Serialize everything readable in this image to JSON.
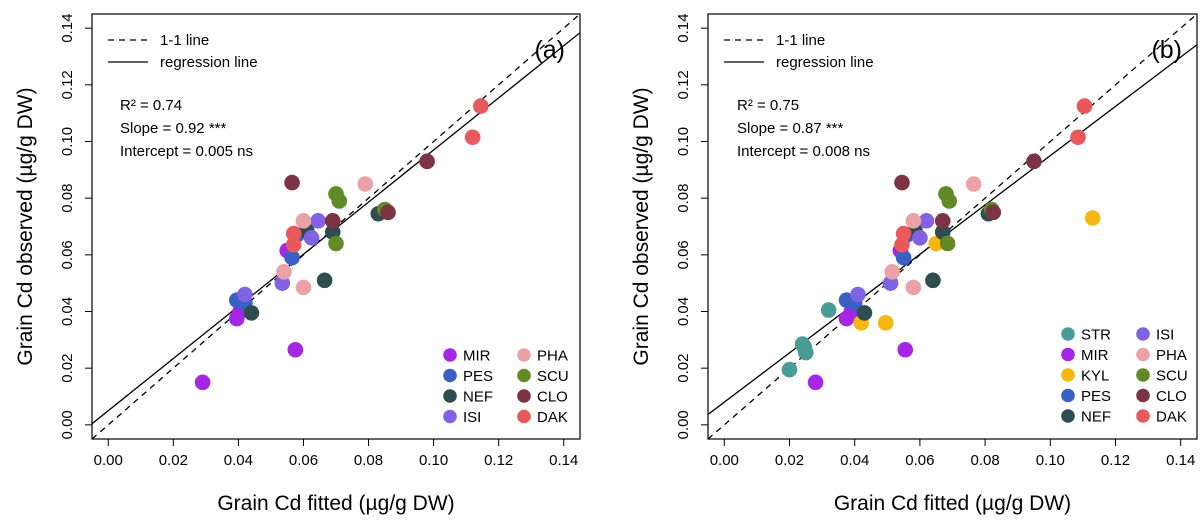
{
  "colors": {
    "STR": "#4a9c96",
    "MIR": "#a626e5",
    "KYL": "#f5b710",
    "PES": "#3a60c6",
    "NEF": "#2e4d4e",
    "ISI": "#8162e4",
    "PHA": "#eaa2a6",
    "SCU": "#5f8a25",
    "CLO": "#7c3344",
    "DAK": "#e9585a"
  },
  "chart_data": [
    {
      "type": "scatter",
      "panel_label": "(a)",
      "xlabel": "Grain Cd fitted (µg/g DW)",
      "ylabel": "Grain Cd observed (µg/g DW)",
      "xlim": [
        -0.005,
        0.145
      ],
      "ylim": [
        -0.005,
        0.145
      ],
      "xticks": [
        "0.00",
        "0.02",
        "0.04",
        "0.06",
        "0.08",
        "0.10",
        "0.12",
        "0.14"
      ],
      "yticks": [
        "0.00",
        "0.02",
        "0.04",
        "0.06",
        "0.08",
        "0.10",
        "0.12",
        "0.14"
      ],
      "line_legend": [
        "1-1 line",
        "regression line"
      ],
      "stats": [
        "R² = 0.74",
        "Slope = 0.92 ***",
        "Intercept = 0.005 ns"
      ],
      "regression": {
        "slope": 0.92,
        "intercept": 0.005
      },
      "legend": [
        "MIR",
        "PES",
        "NEF",
        "ISI",
        "PHA",
        "SCU",
        "CLO",
        "DAK"
      ],
      "legend_position": "bottom-right",
      "points": [
        {
          "g": "MIR",
          "x": 0.029,
          "y": 0.015
        },
        {
          "g": "MIR",
          "x": 0.0575,
          "y": 0.0265
        },
        {
          "g": "MIR",
          "x": 0.0395,
          "y": 0.0375
        },
        {
          "g": "MIR",
          "x": 0.0405,
          "y": 0.04
        },
        {
          "g": "MIR",
          "x": 0.055,
          "y": 0.0615
        },
        {
          "g": "PES",
          "x": 0.0395,
          "y": 0.044
        },
        {
          "g": "PES",
          "x": 0.042,
          "y": 0.043
        },
        {
          "g": "PES",
          "x": 0.0565,
          "y": 0.059
        },
        {
          "g": "PES",
          "x": 0.058,
          "y": 0.067
        },
        {
          "g": "NEF",
          "x": 0.044,
          "y": 0.0395
        },
        {
          "g": "NEF",
          "x": 0.0665,
          "y": 0.051
        },
        {
          "g": "NEF",
          "x": 0.061,
          "y": 0.0685
        },
        {
          "g": "NEF",
          "x": 0.069,
          "y": 0.068
        },
        {
          "g": "NEF",
          "x": 0.083,
          "y": 0.0745
        },
        {
          "g": "ISI",
          "x": 0.042,
          "y": 0.046
        },
        {
          "g": "ISI",
          "x": 0.0535,
          "y": 0.05
        },
        {
          "g": "ISI",
          "x": 0.0625,
          "y": 0.066
        },
        {
          "g": "ISI",
          "x": 0.0645,
          "y": 0.072
        },
        {
          "g": "PHA",
          "x": 0.054,
          "y": 0.054
        },
        {
          "g": "PHA",
          "x": 0.06,
          "y": 0.0485
        },
        {
          "g": "PHA",
          "x": 0.06,
          "y": 0.072
        },
        {
          "g": "PHA",
          "x": 0.079,
          "y": 0.085
        },
        {
          "g": "SCU",
          "x": 0.07,
          "y": 0.064
        },
        {
          "g": "SCU",
          "x": 0.07,
          "y": 0.0815
        },
        {
          "g": "SCU",
          "x": 0.071,
          "y": 0.079
        },
        {
          "g": "SCU",
          "x": 0.085,
          "y": 0.076
        },
        {
          "g": "CLO",
          "x": 0.0565,
          "y": 0.0855
        },
        {
          "g": "CLO",
          "x": 0.069,
          "y": 0.072
        },
        {
          "g": "CLO",
          "x": 0.086,
          "y": 0.075
        },
        {
          "g": "CLO",
          "x": 0.098,
          "y": 0.093
        },
        {
          "g": "DAK",
          "x": 0.057,
          "y": 0.0635
        },
        {
          "g": "DAK",
          "x": 0.057,
          "y": 0.0675
        },
        {
          "g": "DAK",
          "x": 0.112,
          "y": 0.1015
        },
        {
          "g": "DAK",
          "x": 0.1145,
          "y": 0.1125
        }
      ]
    },
    {
      "type": "scatter",
      "panel_label": "(b)",
      "xlabel": "Grain Cd fitted (µg/g DW)",
      "ylabel": "Grain Cd observed (µg/g DW)",
      "xlim": [
        -0.005,
        0.145
      ],
      "ylim": [
        -0.005,
        0.145
      ],
      "xticks": [
        "0.00",
        "0.02",
        "0.04",
        "0.06",
        "0.08",
        "0.10",
        "0.12",
        "0.14"
      ],
      "yticks": [
        "0.00",
        "0.02",
        "0.04",
        "0.06",
        "0.08",
        "0.10",
        "0.12",
        "0.14"
      ],
      "line_legend": [
        "1-1 line",
        "regression line"
      ],
      "stats": [
        "R² = 0.75",
        "Slope = 0.87 ***",
        "Intercept = 0.008 ns"
      ],
      "regression": {
        "slope": 0.87,
        "intercept": 0.008
      },
      "legend": [
        "STR",
        "MIR",
        "KYL",
        "PES",
        "NEF",
        "ISI",
        "PHA",
        "SCU",
        "CLO",
        "DAK"
      ],
      "legend_position": "bottom-right",
      "points": [
        {
          "g": "STR",
          "x": 0.02,
          "y": 0.0195
        },
        {
          "g": "STR",
          "x": 0.024,
          "y": 0.0285
        },
        {
          "g": "STR",
          "x": 0.0245,
          "y": 0.0275
        },
        {
          "g": "STR",
          "x": 0.025,
          "y": 0.0255
        },
        {
          "g": "STR",
          "x": 0.032,
          "y": 0.0405
        },
        {
          "g": "MIR",
          "x": 0.028,
          "y": 0.015
        },
        {
          "g": "MIR",
          "x": 0.0555,
          "y": 0.0265
        },
        {
          "g": "MIR",
          "x": 0.0375,
          "y": 0.0375
        },
        {
          "g": "MIR",
          "x": 0.039,
          "y": 0.04
        },
        {
          "g": "MIR",
          "x": 0.054,
          "y": 0.0615
        },
        {
          "g": "KYL",
          "x": 0.042,
          "y": 0.036
        },
        {
          "g": "KYL",
          "x": 0.0495,
          "y": 0.036
        },
        {
          "g": "KYL",
          "x": 0.065,
          "y": 0.064
        },
        {
          "g": "KYL",
          "x": 0.113,
          "y": 0.073
        },
        {
          "g": "PES",
          "x": 0.0375,
          "y": 0.044
        },
        {
          "g": "PES",
          "x": 0.04,
          "y": 0.043
        },
        {
          "g": "PES",
          "x": 0.055,
          "y": 0.059
        },
        {
          "g": "PES",
          "x": 0.056,
          "y": 0.067
        },
        {
          "g": "NEF",
          "x": 0.043,
          "y": 0.0395
        },
        {
          "g": "NEF",
          "x": 0.064,
          "y": 0.051
        },
        {
          "g": "NEF",
          "x": 0.0585,
          "y": 0.0685
        },
        {
          "g": "NEF",
          "x": 0.067,
          "y": 0.068
        },
        {
          "g": "NEF",
          "x": 0.081,
          "y": 0.0745
        },
        {
          "g": "ISI",
          "x": 0.041,
          "y": 0.046
        },
        {
          "g": "ISI",
          "x": 0.051,
          "y": 0.05
        },
        {
          "g": "ISI",
          "x": 0.06,
          "y": 0.066
        },
        {
          "g": "ISI",
          "x": 0.062,
          "y": 0.072
        },
        {
          "g": "PHA",
          "x": 0.0515,
          "y": 0.054
        },
        {
          "g": "PHA",
          "x": 0.058,
          "y": 0.0485
        },
        {
          "g": "PHA",
          "x": 0.058,
          "y": 0.072
        },
        {
          "g": "PHA",
          "x": 0.0765,
          "y": 0.085
        },
        {
          "g": "SCU",
          "x": 0.0685,
          "y": 0.064
        },
        {
          "g": "SCU",
          "x": 0.068,
          "y": 0.0815
        },
        {
          "g": "SCU",
          "x": 0.069,
          "y": 0.079
        },
        {
          "g": "SCU",
          "x": 0.082,
          "y": 0.076
        },
        {
          "g": "CLO",
          "x": 0.0545,
          "y": 0.0855
        },
        {
          "g": "CLO",
          "x": 0.067,
          "y": 0.072
        },
        {
          "g": "CLO",
          "x": 0.0825,
          "y": 0.075
        },
        {
          "g": "CLO",
          "x": 0.095,
          "y": 0.093
        },
        {
          "g": "DAK",
          "x": 0.0545,
          "y": 0.0635
        },
        {
          "g": "DAK",
          "x": 0.055,
          "y": 0.0675
        },
        {
          "g": "DAK",
          "x": 0.1085,
          "y": 0.1015
        },
        {
          "g": "DAK",
          "x": 0.1105,
          "y": 0.1125
        }
      ]
    }
  ]
}
